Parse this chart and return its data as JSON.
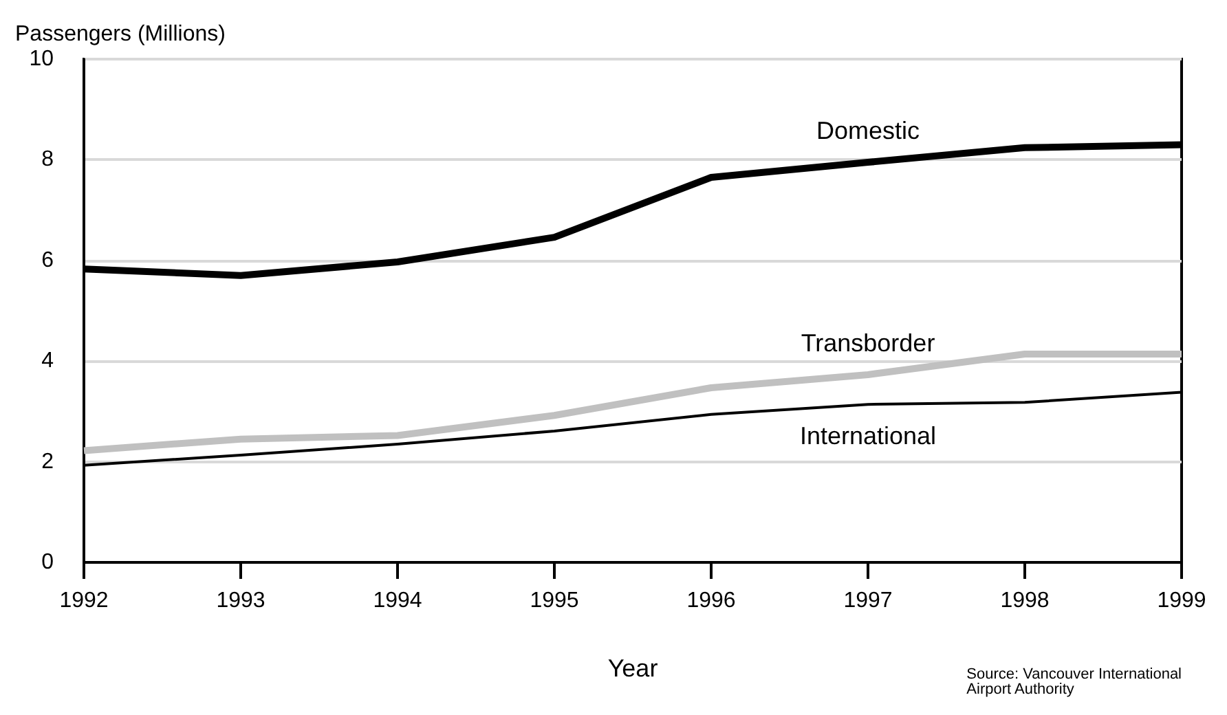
{
  "chart_data": {
    "type": "line",
    "ylabel": "Passengers (Millions)",
    "xlabel": "Year",
    "x": [
      1992,
      1993,
      1994,
      1995,
      1996,
      1997,
      1998,
      1999
    ],
    "xlim": [
      1992,
      1999
    ],
    "xticks": [
      1992,
      1993,
      1994,
      1995,
      1996,
      1997,
      1998,
      1999
    ],
    "ylim": [
      0,
      10
    ],
    "yticks": [
      0,
      2,
      4,
      6,
      8,
      10
    ],
    "grid": "y",
    "legend": false,
    "marker": "none",
    "line_style": "solid",
    "series": [
      {
        "name": "Domestic",
        "color": "#000000",
        "values": [
          5.83,
          5.7,
          5.97,
          6.46,
          7.65,
          7.95,
          8.24,
          8.3
        ]
      },
      {
        "name": "Transborder",
        "color": "#c0c0c0",
        "values": [
          2.22,
          2.45,
          2.52,
          2.92,
          3.47,
          3.73,
          4.14,
          4.14
        ]
      },
      {
        "name": "International",
        "color": "#000000",
        "values": [
          1.93,
          2.13,
          2.35,
          2.61,
          2.94,
          3.14,
          3.18,
          3.38
        ]
      }
    ],
    "annotations": [
      "Source: Vancouver International\nAirport Authority"
    ]
  }
}
